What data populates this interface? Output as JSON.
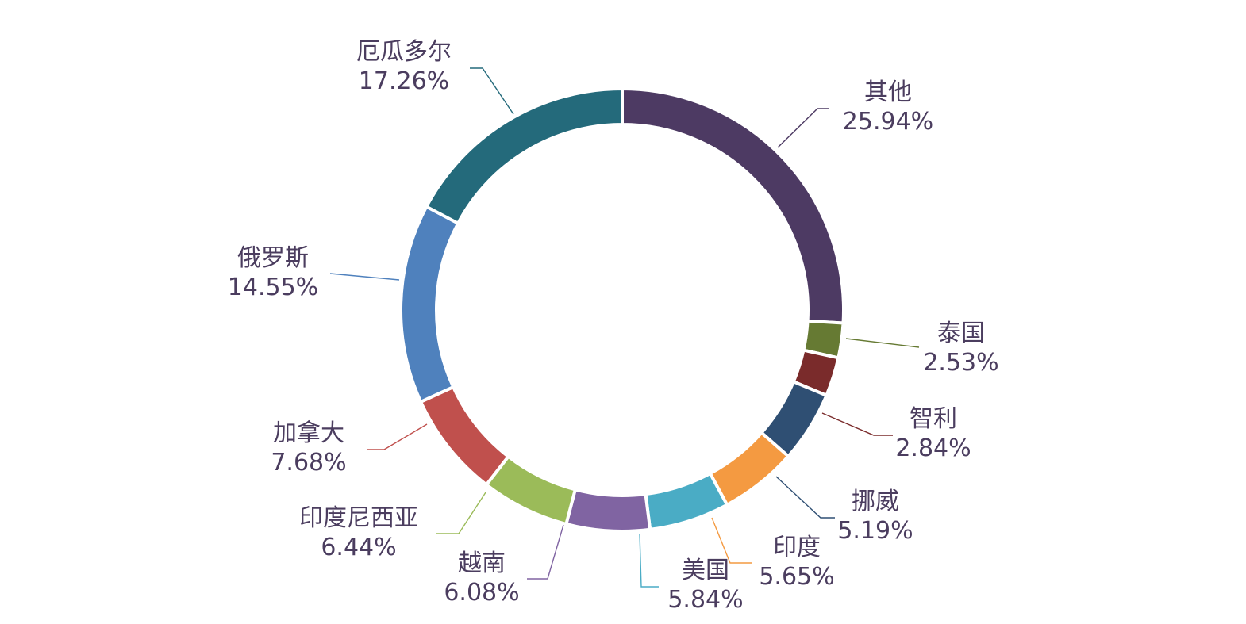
{
  "chart_data": {
    "type": "pie",
    "variant": "donut",
    "title": "",
    "categories": [
      "其他",
      "泰国",
      "智利",
      "挪威",
      "印度",
      "美国",
      "越南",
      "印度尼西亚",
      "加拿大",
      "俄罗斯",
      "厄瓜多尔"
    ],
    "values": [
      25.94,
      2.53,
      2.84,
      5.19,
      5.65,
      5.84,
      6.08,
      6.44,
      7.68,
      14.55,
      17.26
    ],
    "value_labels": [
      "25.94%",
      "2.53%",
      "2.84%",
      "5.19%",
      "5.65%",
      "5.84%",
      "6.08%",
      "6.44%",
      "7.68%",
      "14.55%",
      "17.26%"
    ],
    "colors": [
      "#4d3a63",
      "#667a33",
      "#7a2b2b",
      "#2f4f73",
      "#f49a41",
      "#4aacc5",
      "#8064a2",
      "#9bbb59",
      "#c0504d",
      "#4f81bd",
      "#246a7b"
    ],
    "start_angle_deg": 0,
    "direction": "clockwise",
    "legend": "none"
  }
}
